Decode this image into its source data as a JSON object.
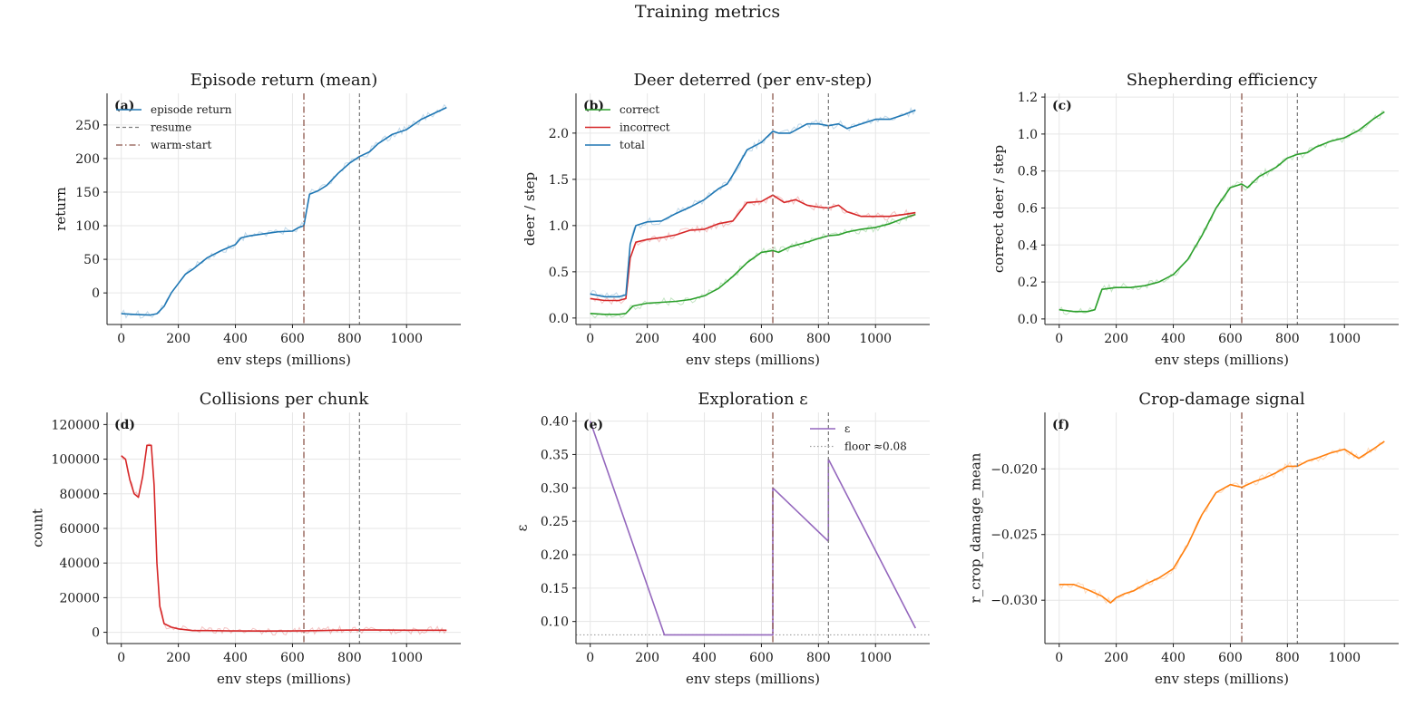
{
  "figure": {
    "suptitle": "Training metrics"
  },
  "colors": {
    "blue": "#1f77b4",
    "green": "#2ca02c",
    "red": "#d62728",
    "orange": "#ff7f0e",
    "purple": "#9467bd",
    "warmstart": "#8c564b",
    "resume": "#7f7f7f",
    "floor": "#a0a0a0"
  },
  "chart_data": [
    {
      "type": "line",
      "panel": "(a)",
      "title": "Episode return (mean)",
      "xlabel": "env steps (millions)",
      "ylabel": "return",
      "xlim": [
        -50,
        1190
      ],
      "ylim": [
        -47,
        297
      ],
      "xticks": [
        0,
        200,
        400,
        600,
        800,
        1000
      ],
      "yticks": [
        0,
        50,
        100,
        150,
        200,
        250
      ],
      "ytick_labels": [
        "0",
        "50",
        "100",
        "150",
        "200",
        "250"
      ],
      "grid": true,
      "legend_position": "upper-left",
      "vlines": [
        {
          "x": 640,
          "name": "warm-start",
          "style": "dashdot",
          "color": "warmstart"
        },
        {
          "x": 835,
          "name": "resume",
          "style": "dashed",
          "color": "resume"
        }
      ],
      "legend": [
        {
          "label": "episode return",
          "kind": "line",
          "color": "blue"
        },
        {
          "label": "resume",
          "kind": "dashed",
          "color": "resume"
        },
        {
          "label": "warm-start",
          "kind": "dashdot",
          "color": "warmstart"
        }
      ],
      "series": [
        {
          "name": "episode return",
          "color": "blue",
          "x": [
            0,
            50,
            100,
            125,
            150,
            175,
            200,
            225,
            250,
            300,
            350,
            400,
            420,
            450,
            500,
            550,
            600,
            620,
            640,
            660,
            690,
            720,
            760,
            800,
            835,
            870,
            900,
            950,
            1000,
            1050,
            1100,
            1140
          ],
          "y": [
            -31,
            -32,
            -33,
            -31,
            -20,
            0,
            14,
            28,
            35,
            52,
            63,
            72,
            82,
            85,
            88,
            91,
            92,
            97,
            100,
            147,
            152,
            160,
            178,
            193,
            203,
            210,
            222,
            236,
            243,
            258,
            268,
            276
          ]
        }
      ]
    },
    {
      "type": "line",
      "panel": "(b)",
      "title": "Deer deterred (per env-step)",
      "xlabel": "env steps (millions)",
      "ylabel": "deer / step",
      "xlim": [
        -50,
        1190
      ],
      "ylim": [
        -0.07,
        2.43
      ],
      "xticks": [
        0,
        200,
        400,
        600,
        800,
        1000
      ],
      "yticks": [
        0,
        0.5,
        1,
        1.5,
        2
      ],
      "ytick_labels": [
        "0.0",
        "0.5",
        "1.0",
        "1.5",
        "2.0"
      ],
      "grid": true,
      "legend_position": "upper-left",
      "vlines": [
        {
          "x": 640,
          "style": "dashdot",
          "color": "warmstart"
        },
        {
          "x": 835,
          "style": "dashed",
          "color": "resume"
        }
      ],
      "legend": [
        {
          "label": "correct",
          "kind": "line",
          "color": "green"
        },
        {
          "label": "incorrect",
          "kind": "line",
          "color": "red"
        },
        {
          "label": "total",
          "kind": "line",
          "color": "blue"
        }
      ],
      "series": [
        {
          "name": "correct",
          "color": "green",
          "x": [
            0,
            50,
            100,
            125,
            150,
            200,
            250,
            300,
            350,
            400,
            450,
            500,
            550,
            600,
            640,
            660,
            700,
            760,
            800,
            835,
            870,
            900,
            950,
            1000,
            1050,
            1100,
            1140
          ],
          "y": [
            0.05,
            0.04,
            0.04,
            0.05,
            0.13,
            0.16,
            0.17,
            0.18,
            0.2,
            0.24,
            0.32,
            0.45,
            0.6,
            0.71,
            0.73,
            0.71,
            0.77,
            0.82,
            0.86,
            0.89,
            0.9,
            0.93,
            0.96,
            0.98,
            1.02,
            1.08,
            1.12
          ]
        },
        {
          "name": "incorrect",
          "color": "red",
          "x": [
            0,
            50,
            100,
            125,
            140,
            160,
            200,
            250,
            300,
            350,
            400,
            450,
            500,
            550,
            600,
            640,
            680,
            720,
            760,
            800,
            835,
            870,
            900,
            950,
            1000,
            1050,
            1100,
            1140
          ],
          "y": [
            0.21,
            0.19,
            0.19,
            0.21,
            0.65,
            0.82,
            0.85,
            0.87,
            0.9,
            0.95,
            0.96,
            1.02,
            1.05,
            1.25,
            1.26,
            1.33,
            1.25,
            1.28,
            1.22,
            1.2,
            1.19,
            1.22,
            1.15,
            1.1,
            1.1,
            1.1,
            1.12,
            1.14
          ]
        },
        {
          "name": "total",
          "color": "blue",
          "x": [
            0,
            50,
            100,
            125,
            140,
            160,
            200,
            250,
            300,
            350,
            400,
            450,
            480,
            500,
            550,
            600,
            640,
            660,
            700,
            760,
            800,
            835,
            870,
            900,
            950,
            1000,
            1050,
            1100,
            1140
          ],
          "y": [
            0.26,
            0.23,
            0.23,
            0.25,
            0.8,
            1.0,
            1.04,
            1.05,
            1.13,
            1.2,
            1.28,
            1.4,
            1.45,
            1.55,
            1.82,
            1.9,
            2.02,
            2.0,
            2.0,
            2.1,
            2.1,
            2.08,
            2.1,
            2.05,
            2.1,
            2.15,
            2.15,
            2.2,
            2.25
          ]
        }
      ]
    },
    {
      "type": "line",
      "panel": "(c)",
      "title": "Shepherding efficiency",
      "xlabel": "env steps (millions)",
      "ylabel": "correct deer / step",
      "xlim": [
        -50,
        1190
      ],
      "ylim": [
        -0.03,
        1.22
      ],
      "xticks": [
        0,
        200,
        400,
        600,
        800,
        1000
      ],
      "yticks": [
        0,
        0.2,
        0.4,
        0.6,
        0.8,
        1,
        1.2
      ],
      "ytick_labels": [
        "0.0",
        "0.2",
        "0.4",
        "0.6",
        "0.8",
        "1.0",
        "1.2"
      ],
      "grid": true,
      "vlines": [
        {
          "x": 640,
          "style": "dashdot",
          "color": "warmstart"
        },
        {
          "x": 835,
          "style": "dashed",
          "color": "resume"
        }
      ],
      "legend": [],
      "series": [
        {
          "name": "",
          "color": "green",
          "x": [
            0,
            50,
            100,
            125,
            150,
            200,
            250,
            300,
            350,
            400,
            450,
            500,
            550,
            600,
            640,
            660,
            700,
            760,
            800,
            835,
            870,
            900,
            950,
            1000,
            1050,
            1100,
            1140
          ],
          "y": [
            0.05,
            0.04,
            0.04,
            0.05,
            0.16,
            0.17,
            0.17,
            0.18,
            0.2,
            0.24,
            0.32,
            0.45,
            0.6,
            0.71,
            0.73,
            0.71,
            0.77,
            0.82,
            0.87,
            0.89,
            0.9,
            0.93,
            0.96,
            0.98,
            1.02,
            1.08,
            1.12
          ]
        }
      ]
    },
    {
      "type": "line",
      "panel": "(d)",
      "title": "Collisions per chunk",
      "xlabel": "env steps (millions)",
      "ylabel": "count",
      "xlim": [
        -50,
        1190
      ],
      "ylim": [
        -6500,
        127000
      ],
      "xticks": [
        0,
        200,
        400,
        600,
        800,
        1000
      ],
      "yticks": [
        0,
        20000,
        40000,
        60000,
        80000,
        100000,
        120000
      ],
      "ytick_labels": [
        "0",
        "20000",
        "40000",
        "60000",
        "80000",
        "100000",
        "120000"
      ],
      "grid": true,
      "vlines": [
        {
          "x": 640,
          "style": "dashdot",
          "color": "warmstart"
        },
        {
          "x": 835,
          "style": "dashed",
          "color": "resume"
        }
      ],
      "legend": [],
      "series": [
        {
          "name": "",
          "color": "red",
          "x": [
            0,
            15,
            30,
            45,
            60,
            75,
            90,
            105,
            115,
            125,
            135,
            150,
            175,
            200,
            250,
            300,
            400,
            500,
            600,
            640,
            700,
            750,
            835,
            900,
            1000,
            1100,
            1140
          ],
          "y": [
            102000,
            100000,
            88000,
            80000,
            78000,
            90000,
            108000,
            108000,
            85000,
            40000,
            15000,
            5000,
            3000,
            2000,
            1000,
            1000,
            800,
            700,
            800,
            900,
            1000,
            1200,
            1300,
            1300,
            1200,
            1200,
            1200
          ]
        }
      ]
    },
    {
      "type": "line",
      "panel": "(e)",
      "title": "Exploration ε",
      "xlabel": "env steps (millions)",
      "ylabel": "ε",
      "xlim": [
        -50,
        1190
      ],
      "ylim": [
        0.067,
        0.413
      ],
      "xticks": [
        0,
        200,
        400,
        600,
        800,
        1000
      ],
      "yticks": [
        0.1,
        0.15,
        0.2,
        0.25,
        0.3,
        0.35,
        0.4
      ],
      "ytick_labels": [
        "0.10",
        "0.15",
        "0.20",
        "0.25",
        "0.30",
        "0.35",
        "0.40"
      ],
      "grid": true,
      "legend_position": "upper-right",
      "vlines": [
        {
          "x": 640,
          "style": "dashdot",
          "color": "warmstart"
        },
        {
          "x": 835,
          "style": "dashed",
          "color": "resume"
        }
      ],
      "hlines": [
        {
          "y": 0.08,
          "style": "dotted",
          "color": "floor"
        }
      ],
      "legend": [
        {
          "label": "ε",
          "kind": "line",
          "color": "purple"
        },
        {
          "label": "floor ≈0.08",
          "kind": "dotted",
          "color": "floor"
        }
      ],
      "series": [
        {
          "name": "ε",
          "color": "purple",
          "x": [
            0,
            260,
            640,
            640,
            835,
            835,
            1140
          ],
          "y": [
            0.4,
            0.08,
            0.08,
            0.3,
            0.22,
            0.343,
            0.09
          ]
        }
      ]
    },
    {
      "type": "line",
      "panel": "(f)",
      "title": "Crop-damage signal",
      "xlabel": "env steps (millions)",
      "ylabel": "r_crop_damage_mean",
      "xlim": [
        -50,
        1190
      ],
      "ylim": [
        -0.0333,
        -0.0157
      ],
      "xticks": [
        0,
        200,
        400,
        600,
        800,
        1000
      ],
      "yticks": [
        -0.03,
        -0.025,
        -0.02
      ],
      "ytick_labels": [
        "−0.030",
        "−0.025",
        "−0.020"
      ],
      "grid": true,
      "vlines": [
        {
          "x": 640,
          "style": "dashdot",
          "color": "warmstart"
        },
        {
          "x": 835,
          "style": "dashed",
          "color": "resume"
        }
      ],
      "legend": [],
      "series": [
        {
          "name": "",
          "color": "orange",
          "x": [
            0,
            50,
            100,
            150,
            180,
            200,
            230,
            260,
            300,
            350,
            400,
            450,
            500,
            550,
            600,
            640,
            680,
            720,
            760,
            800,
            835,
            870,
            900,
            950,
            1000,
            1050,
            1100,
            1140
          ],
          "y": [
            -0.0288,
            -0.0288,
            -0.0292,
            -0.0297,
            -0.0302,
            -0.0298,
            -0.0295,
            -0.0293,
            -0.0288,
            -0.0283,
            -0.0276,
            -0.0258,
            -0.0235,
            -0.0218,
            -0.0212,
            -0.0214,
            -0.021,
            -0.0207,
            -0.0203,
            -0.0198,
            -0.0198,
            -0.0194,
            -0.0192,
            -0.0188,
            -0.0185,
            -0.0192,
            -0.0185,
            -0.0179
          ]
        }
      ]
    }
  ]
}
